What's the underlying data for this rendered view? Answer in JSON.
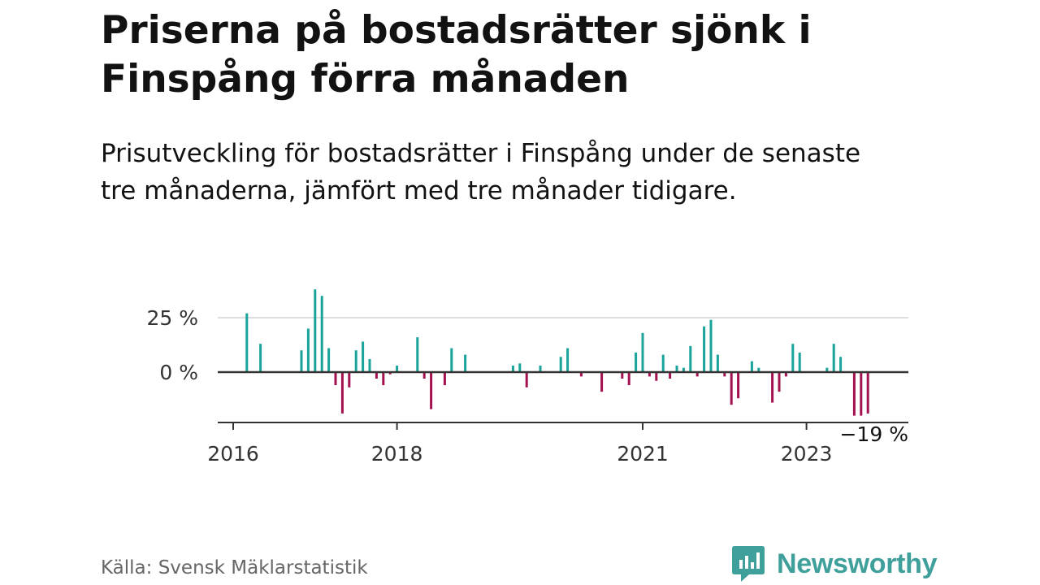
{
  "title": "Priserna på bostadsrätter sjönk i Finspång förra månaden",
  "subtitle": "Prisutveckling för bostadsrätter i Finspång under de senaste tre månaderna, jämfört med tre månader tidigare.",
  "source": "Källa: Svensk Mäklarstatistik",
  "brand": "Newsworthy",
  "colors": {
    "positive": "#1aa39a",
    "negative": "#a3124f",
    "brand": "#3f9f9b",
    "axis": "#333333",
    "grid": "#dddddd"
  },
  "chart_data": {
    "type": "bar",
    "ylabel": "",
    "xlabel": "",
    "ylim": [
      -25,
      40
    ],
    "y_ticks": [
      {
        "value": 0,
        "label": "0 %"
      },
      {
        "value": 25,
        "label": "25 %"
      }
    ],
    "x_ticks": [
      {
        "value": "2016-01",
        "label": "2016"
      },
      {
        "value": "2018-01",
        "label": "2018"
      },
      {
        "value": "2021-01",
        "label": "2021"
      },
      {
        "value": "2023-01",
        "label": "2023"
      }
    ],
    "last_value_label": "−19 %",
    "grid": true,
    "series": [
      {
        "x": [
          "2016-03",
          "2016-05",
          "2016-11",
          "2016-12",
          "2017-01",
          "2017-02",
          "2017-03",
          "2017-04",
          "2017-05",
          "2017-06",
          "2017-07",
          "2017-08",
          "2017-09",
          "2017-10",
          "2017-11",
          "2017-12",
          "2018-01",
          "2018-04",
          "2018-05",
          "2018-06",
          "2018-08",
          "2018-09",
          "2018-11",
          "2019-06",
          "2019-07",
          "2019-08",
          "2019-10",
          "2020-01",
          "2020-02",
          "2020-04",
          "2020-07",
          "2020-10",
          "2020-11",
          "2020-12",
          "2021-01",
          "2021-02",
          "2021-03",
          "2021-04",
          "2021-05",
          "2021-06",
          "2021-07",
          "2021-08",
          "2021-09",
          "2021-10",
          "2021-11",
          "2021-12",
          "2022-01",
          "2022-02",
          "2022-03",
          "2022-05",
          "2022-06",
          "2022-08",
          "2022-09",
          "2022-10",
          "2022-11",
          "2022-12",
          "2023-04",
          "2023-05",
          "2023-06",
          "2023-08",
          "2023-09",
          "2023-10"
        ],
        "values": [
          27,
          13,
          10,
          20,
          38,
          35,
          11,
          -6,
          -19,
          -7,
          10,
          14,
          6,
          -3,
          -6,
          -1,
          3,
          16,
          -3,
          -17,
          -6,
          11,
          8,
          3,
          4,
          -7,
          3,
          7,
          11,
          -2,
          -9,
          -3,
          -6,
          9,
          18,
          -2,
          -4,
          8,
          -3,
          3,
          2,
          12,
          -2,
          21,
          24,
          8,
          -2,
          -15,
          -12,
          5,
          2,
          -14,
          -9,
          -2,
          13,
          9,
          2,
          13,
          7,
          -20,
          -20,
          -19
        ]
      }
    ]
  }
}
